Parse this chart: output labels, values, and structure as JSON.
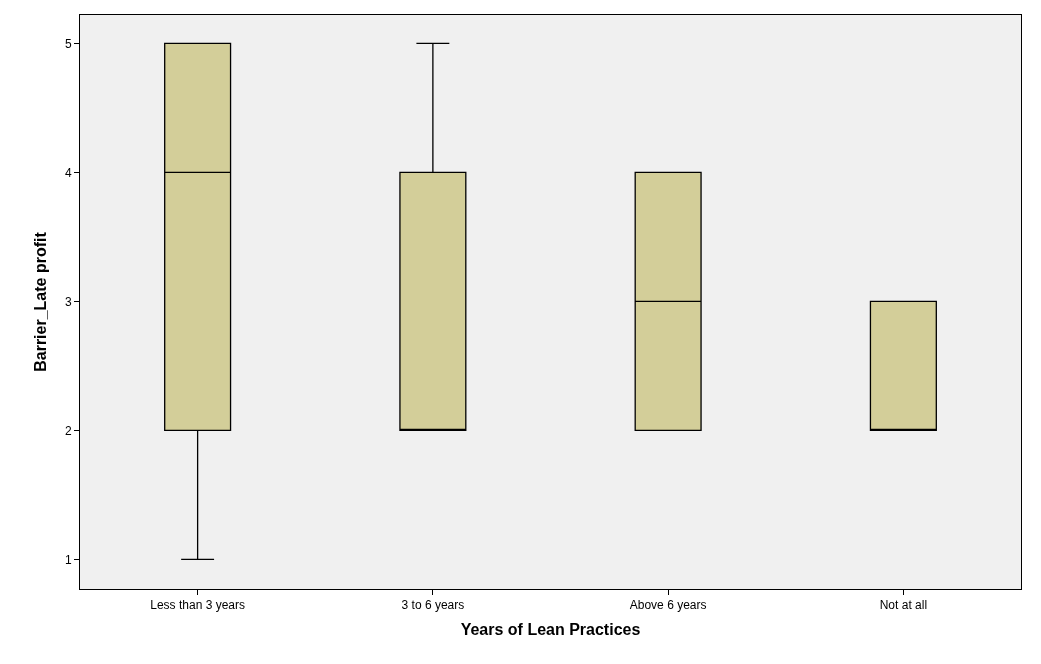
{
  "chart_data": {
    "type": "box",
    "xlabel": "Years of Lean Practices",
    "ylabel": "Barrier_Late profit",
    "categories": [
      "Less than 3 years",
      "3 to 6 years",
      "Above 6 years",
      "Not at all"
    ],
    "boxes": [
      {
        "low": 1,
        "q1": 2,
        "median": 4,
        "q3": 5,
        "high": 5
      },
      {
        "low": 2,
        "q1": 2,
        "median": 2,
        "q3": 4,
        "high": 5
      },
      {
        "low": 2,
        "q1": 2,
        "median": 3,
        "q3": 4,
        "high": 4
      },
      {
        "low": 2,
        "q1": 2,
        "median": 2,
        "q3": 3,
        "high": 3
      }
    ],
    "color": "#d3ce99",
    "ylim": [
      0.77,
      5.22
    ],
    "yticks": [
      1,
      2,
      3,
      4,
      5
    ],
    "grid": false,
    "legend": false
  }
}
